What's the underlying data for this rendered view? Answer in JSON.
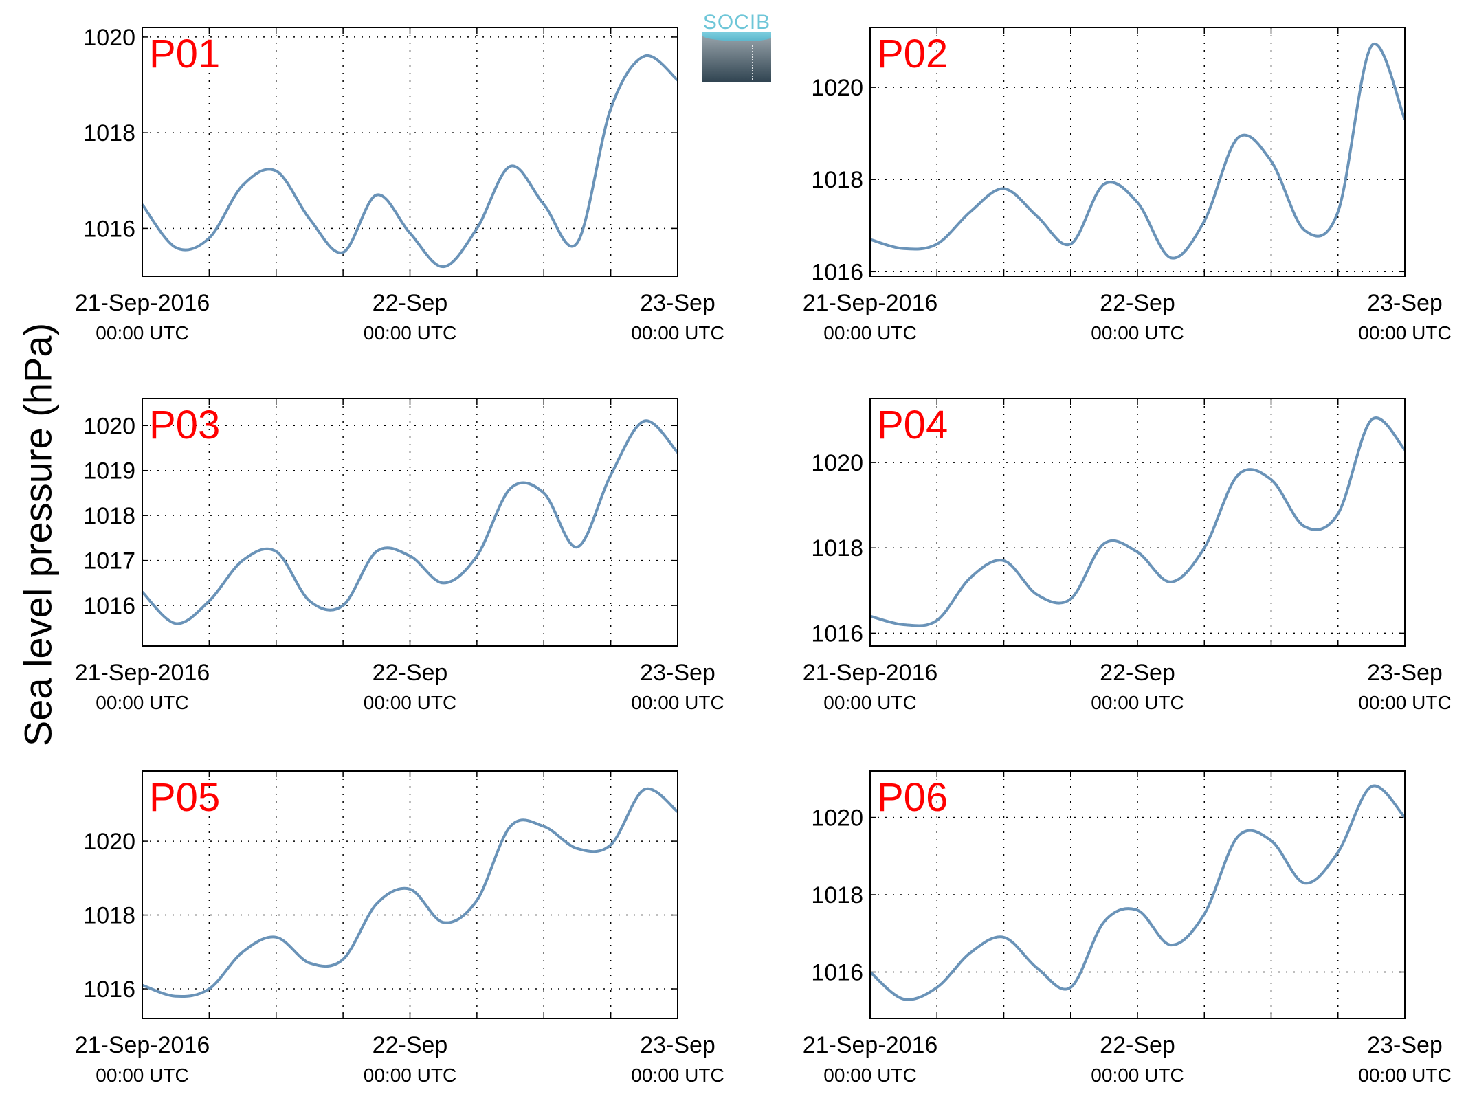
{
  "figure": {
    "ylabel": "Sea level pressure (hPa)",
    "logo_text": "SOCIB"
  },
  "colors": {
    "line": "#6a93b8",
    "panel_label": "#ff0000",
    "axis": "#000000",
    "grid": "#000000"
  },
  "chart_data": [
    {
      "type": "line",
      "title": "P01",
      "x": [
        "21-Sep-2016 00:00",
        "21-Sep-2016 03:00",
        "21-Sep-2016 06:00",
        "21-Sep-2016 09:00",
        "21-Sep-2016 12:00",
        "21-Sep-2016 15:00",
        "21-Sep-2016 18:00",
        "21-Sep-2016 21:00",
        "22-Sep-2016 00:00",
        "22-Sep-2016 03:00",
        "22-Sep-2016 06:00",
        "22-Sep-2016 09:00",
        "22-Sep-2016 12:00",
        "22-Sep-2016 15:00",
        "22-Sep-2016 18:00",
        "22-Sep-2016 21:00",
        "23-Sep-2016 00:00"
      ],
      "series": [
        {
          "values": [
            1016.5,
            1015.6,
            1015.8,
            1016.9,
            1017.2,
            1016.2,
            1015.5,
            1016.7,
            1015.9,
            1015.2,
            1016.0,
            1017.3,
            1016.5,
            1015.7,
            1018.5,
            1019.6,
            1019.1
          ]
        }
      ],
      "ylim": [
        1015,
        1020.2
      ],
      "yticks": [
        "1016",
        "1018",
        "1020"
      ],
      "xtick_labels": [
        [
          "21-Sep-2016",
          "00:00 UTC"
        ],
        [
          "22-Sep",
          "00:00 UTC"
        ],
        [
          "23-Sep",
          "00:00 UTC"
        ]
      ],
      "grid": true
    },
    {
      "type": "line",
      "title": "P02",
      "x": [
        "21-Sep-2016 00:00",
        "21-Sep-2016 03:00",
        "21-Sep-2016 06:00",
        "21-Sep-2016 09:00",
        "21-Sep-2016 12:00",
        "21-Sep-2016 15:00",
        "21-Sep-2016 18:00",
        "21-Sep-2016 21:00",
        "22-Sep-2016 00:00",
        "22-Sep-2016 03:00",
        "22-Sep-2016 06:00",
        "22-Sep-2016 09:00",
        "22-Sep-2016 12:00",
        "22-Sep-2016 15:00",
        "22-Sep-2016 18:00",
        "22-Sep-2016 21:00",
        "23-Sep-2016 00:00"
      ],
      "series": [
        {
          "values": [
            1016.7,
            1016.5,
            1016.6,
            1017.3,
            1017.8,
            1017.2,
            1016.6,
            1017.9,
            1017.5,
            1016.3,
            1017.1,
            1018.9,
            1018.4,
            1016.9,
            1017.3,
            1020.9,
            1019.3
          ]
        }
      ],
      "ylim": [
        1015.9,
        1021.3
      ],
      "yticks": [
        "1016",
        "1018",
        "1020"
      ],
      "xtick_labels": [
        [
          "21-Sep-2016",
          "00:00 UTC"
        ],
        [
          "22-Sep",
          "00:00 UTC"
        ],
        [
          "23-Sep",
          "00:00 UTC"
        ]
      ],
      "grid": true
    },
    {
      "type": "line",
      "title": "P03",
      "x": [
        "21-Sep-2016 00:00",
        "21-Sep-2016 03:00",
        "21-Sep-2016 06:00",
        "21-Sep-2016 09:00",
        "21-Sep-2016 12:00",
        "21-Sep-2016 15:00",
        "21-Sep-2016 18:00",
        "21-Sep-2016 21:00",
        "22-Sep-2016 00:00",
        "22-Sep-2016 03:00",
        "22-Sep-2016 06:00",
        "22-Sep-2016 09:00",
        "22-Sep-2016 12:00",
        "22-Sep-2016 15:00",
        "22-Sep-2016 18:00",
        "22-Sep-2016 21:00",
        "23-Sep-2016 00:00"
      ],
      "series": [
        {
          "values": [
            1016.3,
            1015.6,
            1016.1,
            1017.0,
            1017.2,
            1016.1,
            1016.0,
            1017.2,
            1017.1,
            1016.5,
            1017.1,
            1018.6,
            1018.5,
            1017.3,
            1018.9,
            1020.1,
            1019.4
          ]
        }
      ],
      "ylim": [
        1015.1,
        1020.6
      ],
      "yticks": [
        "1016",
        "1017",
        "1018",
        "1019",
        "1020"
      ],
      "xtick_labels": [
        [
          "21-Sep-2016",
          "00:00 UTC"
        ],
        [
          "22-Sep",
          "00:00 UTC"
        ],
        [
          "23-Sep",
          "00:00 UTC"
        ]
      ],
      "grid": true
    },
    {
      "type": "line",
      "title": "P04",
      "x": [
        "21-Sep-2016 00:00",
        "21-Sep-2016 03:00",
        "21-Sep-2016 06:00",
        "21-Sep-2016 09:00",
        "21-Sep-2016 12:00",
        "21-Sep-2016 15:00",
        "21-Sep-2016 18:00",
        "21-Sep-2016 21:00",
        "22-Sep-2016 00:00",
        "22-Sep-2016 03:00",
        "22-Sep-2016 06:00",
        "22-Sep-2016 09:00",
        "22-Sep-2016 12:00",
        "22-Sep-2016 15:00",
        "22-Sep-2016 18:00",
        "22-Sep-2016 21:00",
        "23-Sep-2016 00:00"
      ],
      "series": [
        {
          "values": [
            1016.4,
            1016.2,
            1016.3,
            1017.3,
            1017.7,
            1016.9,
            1016.8,
            1018.1,
            1017.9,
            1017.2,
            1018.0,
            1019.7,
            1019.6,
            1018.5,
            1018.8,
            1021.0,
            1020.3
          ]
        }
      ],
      "ylim": [
        1015.7,
        1021.5
      ],
      "yticks": [
        "1016",
        "1018",
        "1020"
      ],
      "xtick_labels": [
        [
          "21-Sep-2016",
          "00:00 UTC"
        ],
        [
          "22-Sep",
          "00:00 UTC"
        ],
        [
          "23-Sep",
          "00:00 UTC"
        ]
      ],
      "grid": true
    },
    {
      "type": "line",
      "title": "P05",
      "x": [
        "21-Sep-2016 00:00",
        "21-Sep-2016 03:00",
        "21-Sep-2016 06:00",
        "21-Sep-2016 09:00",
        "21-Sep-2016 12:00",
        "21-Sep-2016 15:00",
        "21-Sep-2016 18:00",
        "21-Sep-2016 21:00",
        "22-Sep-2016 00:00",
        "22-Sep-2016 03:00",
        "22-Sep-2016 06:00",
        "22-Sep-2016 09:00",
        "22-Sep-2016 12:00",
        "22-Sep-2016 15:00",
        "22-Sep-2016 18:00",
        "22-Sep-2016 21:00",
        "23-Sep-2016 00:00"
      ],
      "series": [
        {
          "values": [
            1016.1,
            1015.8,
            1016.0,
            1017.0,
            1017.4,
            1016.7,
            1016.8,
            1018.3,
            1018.7,
            1017.8,
            1018.4,
            1020.4,
            1020.4,
            1019.8,
            1019.9,
            1021.4,
            1020.8
          ]
        }
      ],
      "ylim": [
        1015.2,
        1021.9
      ],
      "yticks": [
        "1016",
        "1018",
        "1020"
      ],
      "xtick_labels": [
        [
          "21-Sep-2016",
          "00:00 UTC"
        ],
        [
          "22-Sep",
          "00:00 UTC"
        ],
        [
          "23-Sep",
          "00:00 UTC"
        ]
      ],
      "grid": true
    },
    {
      "type": "line",
      "title": "P06",
      "x": [
        "21-Sep-2016 00:00",
        "21-Sep-2016 03:00",
        "21-Sep-2016 06:00",
        "21-Sep-2016 09:00",
        "21-Sep-2016 12:00",
        "21-Sep-2016 15:00",
        "21-Sep-2016 18:00",
        "21-Sep-2016 21:00",
        "22-Sep-2016 00:00",
        "22-Sep-2016 03:00",
        "22-Sep-2016 06:00",
        "22-Sep-2016 09:00",
        "22-Sep-2016 12:00",
        "22-Sep-2016 15:00",
        "22-Sep-2016 18:00",
        "22-Sep-2016 21:00",
        "23-Sep-2016 00:00"
      ],
      "series": [
        {
          "values": [
            1016.0,
            1015.3,
            1015.6,
            1016.5,
            1016.9,
            1016.1,
            1015.6,
            1017.3,
            1017.6,
            1016.7,
            1017.5,
            1019.5,
            1019.4,
            1018.3,
            1019.1,
            1020.8,
            1020.0
          ]
        }
      ],
      "ylim": [
        1014.8,
        1021.2
      ],
      "yticks": [
        "1016",
        "1018",
        "1020"
      ],
      "xtick_labels": [
        [
          "21-Sep-2016",
          "00:00 UTC"
        ],
        [
          "22-Sep",
          "00:00 UTC"
        ],
        [
          "23-Sep",
          "00:00 UTC"
        ]
      ],
      "grid": true
    }
  ]
}
